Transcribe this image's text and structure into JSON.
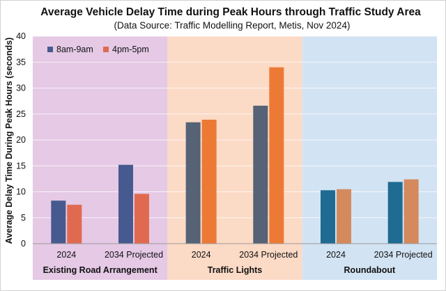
{
  "chart_data": {
    "type": "bar",
    "title": "Average Vehicle Delay Time during Peak Hours through Traffic Study Area",
    "subtitle": "(Data Source: Traffic Modelling Report, Metis, Nov 2024)",
    "xlabel": "",
    "ylabel": "Average Delay Time During Peak Hours (seconds)",
    "ylim": [
      0,
      40
    ],
    "yticks": [
      "0",
      "5",
      "10",
      "15",
      "20",
      "25",
      "30",
      "35",
      "40"
    ],
    "grid": true,
    "legend_position": "top-left",
    "legend": [
      {
        "name": "8am-9am",
        "color": "#475a8f"
      },
      {
        "name": "4pm-5pm",
        "color": "#e06a50"
      }
    ],
    "groups": [
      {
        "name": "Existing Road Arrangement",
        "background": "#e5c9e5",
        "categories": [
          "2024",
          "2034 Projected"
        ],
        "series": [
          {
            "name": "8am-9am",
            "values": [
              8.3,
              15.2
            ],
            "color": "#475a8f"
          },
          {
            "name": "4pm-5pm",
            "values": [
              7.5,
              9.6
            ],
            "color": "#e06a50"
          }
        ]
      },
      {
        "name": "Traffic Lights",
        "background": "#fbdac6",
        "categories": [
          "2024",
          "2034 Projected"
        ],
        "series": [
          {
            "name": "8am-9am",
            "values": [
              23.4,
              26.6
            ],
            "color": "#566275"
          },
          {
            "name": "4pm-5pm",
            "values": [
              23.9,
              34.0
            ],
            "color": "#ec7a35"
          }
        ]
      },
      {
        "name": "Roundabout",
        "background": "#d2e3f3",
        "categories": [
          "2024",
          "2034 Projected"
        ],
        "series": [
          {
            "name": "8am-9am",
            "values": [
              10.3,
              11.9
            ],
            "color": "#1f6b92"
          },
          {
            "name": "4pm-5pm",
            "values": [
              10.5,
              12.4
            ],
            "color": "#d48a5d"
          }
        ]
      }
    ]
  }
}
